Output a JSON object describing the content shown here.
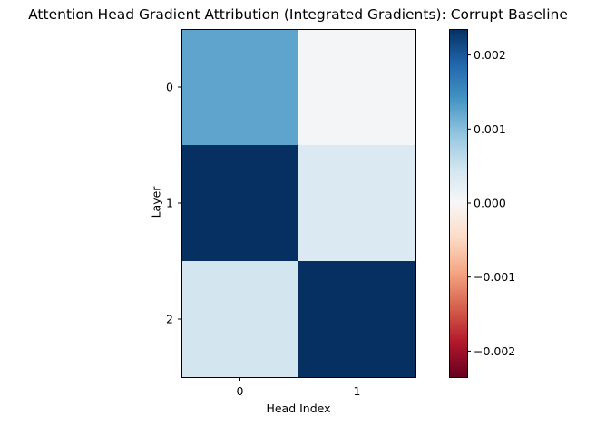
{
  "chart_data": {
    "type": "heatmap",
    "title": "Attention Head Gradient Attribution (Integrated Gradients): Corrupt Baseline",
    "xlabel": "Head Index",
    "ylabel": "Layer",
    "x_categories": [
      "0",
      "1"
    ],
    "y_categories": [
      "0",
      "1",
      "2"
    ],
    "values": [
      [
        0.00125,
        5e-05
      ],
      [
        0.00235,
        0.00035
      ],
      [
        0.00045,
        0.00235
      ]
    ],
    "colormap": "RdBu",
    "vmin": -0.00235,
    "vmax": 0.00235,
    "colorbar": {
      "ticks": [
        0.002,
        0.001,
        0.0,
        -0.001,
        -0.002
      ],
      "tick_labels": [
        "0.002",
        "0.001",
        "0.000",
        "−0.001",
        "−0.002"
      ]
    }
  }
}
